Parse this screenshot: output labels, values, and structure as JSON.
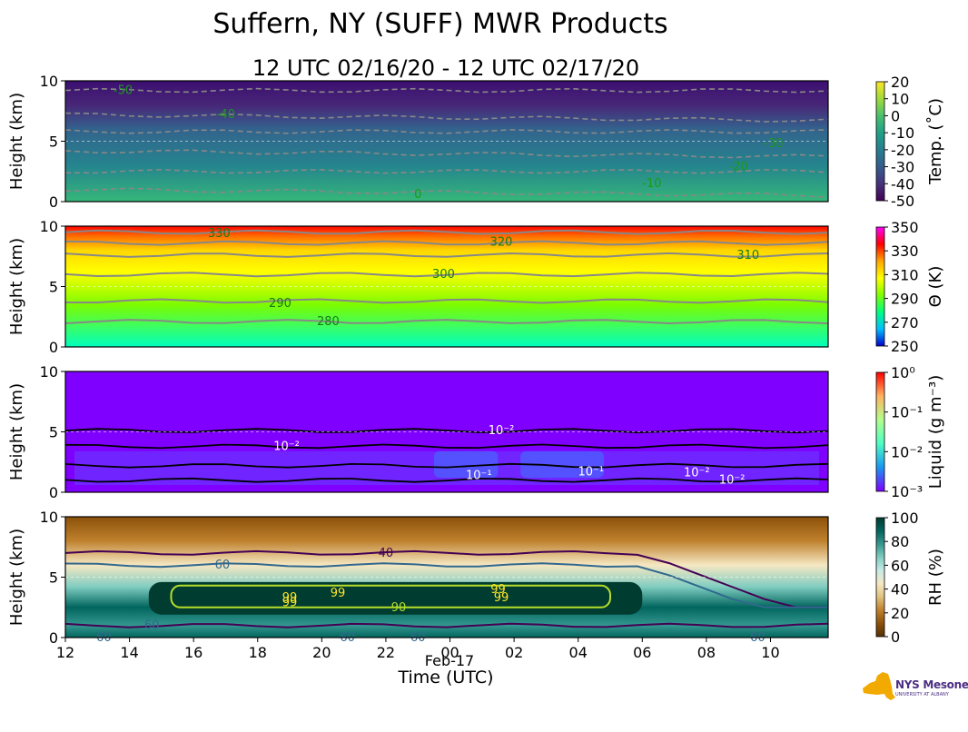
{
  "title": "Suffern, NY (SUFF) MWR Products",
  "subtitle": "12 UTC 02/16/20 - 12 UTC 02/17/20",
  "logo": {
    "text": "NYS Mesonet",
    "sub": "UNIVERSITY AT ALBANY"
  },
  "chart_data": [
    {
      "type": "heatmap",
      "panel": "temperature",
      "ylabel": "Height (km)",
      "ylim": [
        0,
        10
      ],
      "yticks": [
        "0",
        "5",
        "10"
      ],
      "colorbar_label": "Temp. (˚C)",
      "colorbar_ticks": [
        "20",
        "10",
        "0",
        "-10",
        "-20",
        "-30",
        "-40",
        "-50"
      ],
      "colorbar_colors": [
        "#fde725",
        "#a0da39",
        "#4ac16d",
        "#1fa187",
        "#277f8e",
        "#365c8d",
        "#46327e",
        "#440154"
      ],
      "contours": [
        {
          "label": "-50",
          "x_hours": 13.8,
          "height_km": 9.2
        },
        {
          "label": "-40",
          "x_hours": 17.0,
          "height_km": 7.2
        },
        {
          "label": "-30",
          "x_hours": 34.1,
          "height_km": 4.8
        },
        {
          "label": "-20",
          "x_hours": 33.0,
          "height_km": 2.9
        },
        {
          "label": "-10",
          "x_hours": 30.3,
          "height_km": 1.5
        },
        {
          "label": "0",
          "x_hours": 23.0,
          "height_km": 0.6
        }
      ]
    },
    {
      "type": "heatmap",
      "panel": "potential_temperature",
      "ylabel": "Height (km)",
      "ylim": [
        0,
        10
      ],
      "yticks": [
        "0",
        "5",
        "10"
      ],
      "colorbar_label": "Θ (K)",
      "colorbar_ticks": [
        "350",
        "330",
        "310",
        "290",
        "270",
        "250"
      ],
      "colorbar_colors": [
        "#ff00ff",
        "#ff0000",
        "#ffa500",
        "#ffff00",
        "#7fff00",
        "#00ff7f",
        "#00bfff",
        "#0000cd"
      ],
      "contours": [
        {
          "label": "330",
          "x_hours": 16.8,
          "height_km": 9.4
        },
        {
          "label": "320",
          "x_hours": 25.6,
          "height_km": 8.7
        },
        {
          "label": "310",
          "x_hours": 33.3,
          "height_km": 7.6
        },
        {
          "label": "300",
          "x_hours": 23.8,
          "height_km": 6.0
        },
        {
          "label": "290",
          "x_hours": 18.7,
          "height_km": 3.6
        },
        {
          "label": "280",
          "x_hours": 20.2,
          "height_km": 2.1
        }
      ]
    },
    {
      "type": "heatmap",
      "panel": "liquid",
      "ylabel": "Height (km)",
      "ylim": [
        0,
        10
      ],
      "yticks": [
        "0",
        "5",
        "10"
      ],
      "colorbar_label": "Liquid (g m⁻³)",
      "colorbar_ticks": [
        "10⁰",
        "10⁻¹",
        "10⁻²",
        "10⁻³"
      ],
      "colorbar_colors": [
        "#ff0000",
        "#ffb360",
        "#b3ff8c",
        "#4cffc4",
        "#1996f3",
        "#8000ff"
      ],
      "contours": [
        {
          "label": "10⁻²",
          "x_hours": 25.6,
          "height_km": 5.1
        },
        {
          "label": "10⁻²",
          "x_hours": 18.9,
          "height_km": 3.8
        },
        {
          "label": "10⁻¹",
          "x_hours": 24.9,
          "height_km": 1.4
        },
        {
          "label": "10⁻¹",
          "x_hours": 28.4,
          "height_km": 1.7
        },
        {
          "label": "10⁻²",
          "x_hours": 31.7,
          "height_km": 1.6
        },
        {
          "label": "10⁻²",
          "x_hours": 32.8,
          "height_km": 1.0
        }
      ]
    },
    {
      "type": "heatmap",
      "panel": "relative_humidity",
      "ylabel": "Height (km)",
      "ylim": [
        0,
        10
      ],
      "yticks": [
        "0",
        "5",
        "10"
      ],
      "colorbar_label": "RH (%)",
      "colorbar_ticks": [
        "100",
        "80",
        "60",
        "40",
        "20",
        "0"
      ],
      "colorbar_colors": [
        "#003c30",
        "#01665e",
        "#35978f",
        "#80cdc1",
        "#c7eae5",
        "#f6e8c3",
        "#dfc27d",
        "#bf812d",
        "#8c510a",
        "#543005"
      ],
      "contours": [
        {
          "label": "40",
          "x_hours": 22.0,
          "height_km": 7.0
        },
        {
          "label": "60",
          "x_hours": 16.9,
          "height_km": 6.0
        },
        {
          "label": "60",
          "x_hours": 14.7,
          "height_km": 1.0
        },
        {
          "label": "60",
          "x_hours": 13.2,
          "height_km": 0.0
        },
        {
          "label": "60",
          "x_hours": 20.8,
          "height_km": 0.0
        },
        {
          "label": "60",
          "x_hours": 23.0,
          "height_km": 0.0
        },
        {
          "label": "60",
          "x_hours": 33.6,
          "height_km": 0.0
        },
        {
          "label": "99",
          "x_hours": 19.0,
          "height_km": 3.3
        },
        {
          "label": "99",
          "x_hours": 19.0,
          "height_km": 2.9
        },
        {
          "label": "99",
          "x_hours": 20.5,
          "height_km": 3.7
        },
        {
          "label": "99",
          "x_hours": 25.5,
          "height_km": 4.0
        },
        {
          "label": "99",
          "x_hours": 25.6,
          "height_km": 3.3
        },
        {
          "label": "90",
          "x_hours": 22.4,
          "height_km": 2.5
        }
      ]
    }
  ],
  "xaxis": {
    "label": "Time (UTC)",
    "range_hours": [
      12,
      35.8
    ],
    "ticks": [
      "12",
      "14",
      "16",
      "18",
      "20",
      "22",
      "00",
      "02",
      "04",
      "06",
      "08",
      "10"
    ],
    "date_label": "Feb-17"
  }
}
